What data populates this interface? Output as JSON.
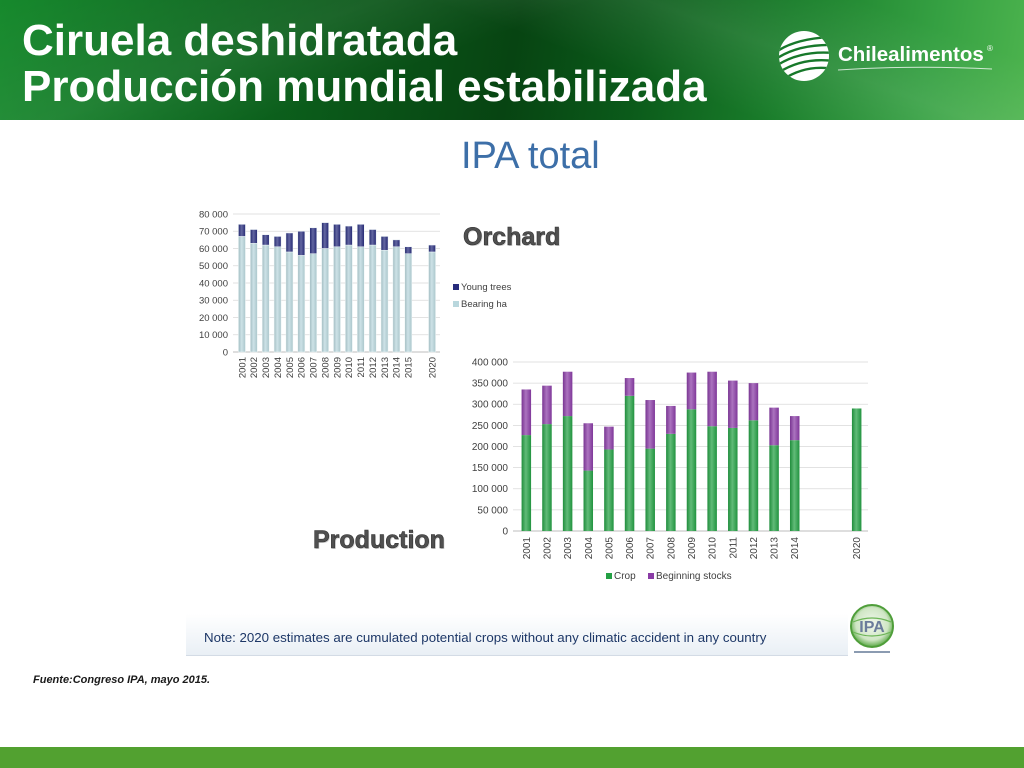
{
  "header": {
    "title_line1": "Ciruela deshidratada",
    "title_line2": "Producción mundial estabilizada",
    "logo_name": "Chilealimentos",
    "logo_registered": "®",
    "logo_icon": "chilealimentos-globe-icon"
  },
  "figure": {
    "heading": "IPA total",
    "note": "Note: 2020 estimates are cumulated potential crops without any climatic accident in any country",
    "ipa_logo_text": "IPA",
    "ipa_logo_icon": "ipa-globe-icon"
  },
  "source": "Fuente:Congreso IPA, mayo 2015.",
  "colors": {
    "header_dark_green": "#074412",
    "header_light_green": "#4db44e",
    "footer_green": "#52a130",
    "heading_blue": "#3d6fa8",
    "note_navy": "#1d3767"
  },
  "chart_data": [
    {
      "type": "bar",
      "stacked": true,
      "title": "Orchard",
      "categories": [
        "2001",
        "2002",
        "2003",
        "2004",
        "2005",
        "2006",
        "2007",
        "2008",
        "2009",
        "2010",
        "2011",
        "2012",
        "2013",
        "2014",
        "2015",
        "2020"
      ],
      "series": [
        {
          "name": "Bearing ha",
          "color": "#b9d7dd",
          "values": [
            67000,
            63000,
            62000,
            61000,
            58000,
            56000,
            57000,
            60000,
            61000,
            62000,
            61000,
            62000,
            59000,
            61000,
            57000,
            58000
          ]
        },
        {
          "name": "Young trees",
          "color": "#272c7c",
          "values": [
            7000,
            8000,
            6000,
            6000,
            11000,
            14000,
            15000,
            15000,
            13000,
            11000,
            13000,
            9000,
            8000,
            4000,
            4000,
            4000
          ]
        }
      ],
      "ylim": [
        0,
        80000
      ],
      "yticks": [
        0,
        10000,
        20000,
        30000,
        40000,
        50000,
        60000,
        70000,
        80000
      ],
      "ytick_labels": [
        "0",
        "10 000",
        "20 000",
        "30 000",
        "40 000",
        "50 000",
        "60 000",
        "70 000",
        "80 000"
      ],
      "grid": true,
      "legend": "right"
    },
    {
      "type": "bar",
      "stacked": true,
      "title": "Production",
      "categories": [
        "2001",
        "2002",
        "2003",
        "2004",
        "2005",
        "2006",
        "2007",
        "2008",
        "2009",
        "2010",
        "2011",
        "2012",
        "2013",
        "2014",
        "2020"
      ],
      "series": [
        {
          "name": "Crop",
          "color": "#24a044",
          "values": [
            227000,
            253000,
            272000,
            143000,
            193000,
            320000,
            195000,
            230000,
            288000,
            248000,
            244000,
            262000,
            203000,
            215000,
            290000
          ]
        },
        {
          "name": "Beginning stocks",
          "color": "#8a3ca6",
          "values": [
            108000,
            91000,
            105000,
            112000,
            54000,
            42000,
            115000,
            66000,
            87000,
            129000,
            112000,
            88000,
            89000,
            57000,
            0
          ]
        }
      ],
      "ylim": [
        0,
        400000
      ],
      "yticks": [
        0,
        50000,
        100000,
        150000,
        200000,
        250000,
        300000,
        350000,
        400000
      ],
      "ytick_labels": [
        "0",
        "50 000",
        "100 000",
        "150 000",
        "200 000",
        "250 000",
        "300 000",
        "350 000",
        "400 000"
      ],
      "grid": true,
      "legend": "bottom"
    }
  ]
}
